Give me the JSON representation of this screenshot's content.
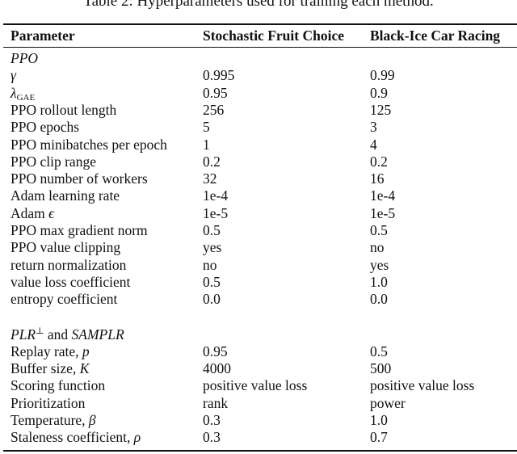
{
  "caption": "Table 2: Hyperparameters used for training each method.",
  "header": {
    "param": "Parameter",
    "col1": "Stochastic Fruit Choice",
    "col2": "Black-Ice Car Racing"
  },
  "sections": [
    {
      "title": "PPO",
      "rows": [
        {
          "label": "",
          "sym": "γ",
          "sub": "",
          "v1": "0.995",
          "v2": "0.99"
        },
        {
          "label": "",
          "sym": "λ",
          "sub": "GAE",
          "v1": "0.95",
          "v2": "0.9"
        },
        {
          "label": "PPO rollout length",
          "sym": "",
          "sub": "",
          "v1": "256",
          "v2": "125"
        },
        {
          "label": "PPO epochs",
          "sym": "",
          "sub": "",
          "v1": "5",
          "v2": "3"
        },
        {
          "label": "PPO minibatches per epoch",
          "sym": "",
          "sub": "",
          "v1": "1",
          "v2": "4"
        },
        {
          "label": "PPO clip range",
          "sym": "",
          "sub": "",
          "v1": "0.2",
          "v2": "0.2"
        },
        {
          "label": "PPO number of workers",
          "sym": "",
          "sub": "",
          "v1": "32",
          "v2": "16"
        },
        {
          "label": "Adam learning rate",
          "sym": "",
          "sub": "",
          "v1": "1e-4",
          "v2": "1e-4"
        },
        {
          "label": "Adam ",
          "sym": "ϵ",
          "sub": "",
          "v1": "1e-5",
          "v2": "1e-5"
        },
        {
          "label": "PPO max gradient norm",
          "sym": "",
          "sub": "",
          "v1": "0.5",
          "v2": "0.5"
        },
        {
          "label": "PPO value clipping",
          "sym": "",
          "sub": "",
          "v1": "yes",
          "v2": "no"
        },
        {
          "label": "return normalization",
          "sym": "",
          "sub": "",
          "v1": "no",
          "v2": "yes"
        },
        {
          "label": "value loss coefficient",
          "sym": "",
          "sub": "",
          "v1": "0.5",
          "v2": "1.0"
        },
        {
          "label": "entropy coefficient",
          "sym": "",
          "sub": "",
          "v1": "0.0",
          "v2": "0.0"
        }
      ]
    },
    {
      "title": "PLR",
      "title_sup": "⊥",
      "title_and": " and ",
      "title2": "SAMPLR",
      "rows": [
        {
          "label": "Replay rate, ",
          "sym": "p",
          "sub": "",
          "v1": "0.95",
          "v2": "0.5"
        },
        {
          "label": "Buffer size, ",
          "sym": "K",
          "sub": "",
          "v1": "4000",
          "v2": "500"
        },
        {
          "label": "Scoring function",
          "sym": "",
          "sub": "",
          "v1": "positive value loss",
          "v2": "positive value loss"
        },
        {
          "label": "Prioritization",
          "sym": "",
          "sub": "",
          "v1": "rank",
          "v2": "power"
        },
        {
          "label": "Temperature, ",
          "sym": "β",
          "sub": "",
          "v1": "0.3",
          "v2": "1.0"
        },
        {
          "label": "Staleness coefficient, ",
          "sym": "ρ",
          "sub": "",
          "v1": "0.3",
          "v2": "0.7"
        }
      ]
    }
  ]
}
